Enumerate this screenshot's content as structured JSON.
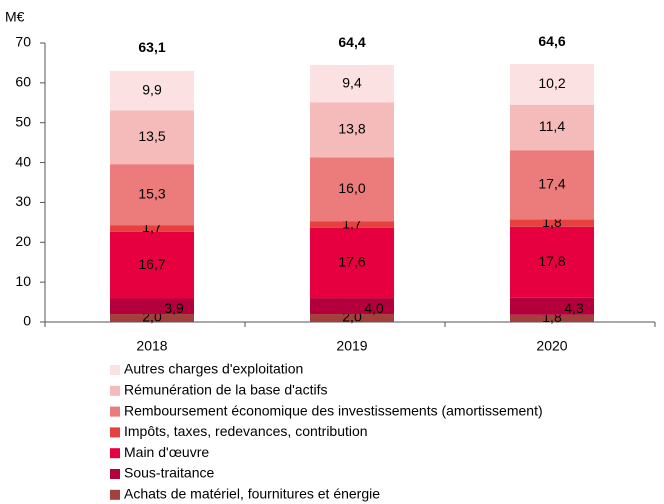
{
  "chart_data": {
    "type": "stacked_bar",
    "y_unit": "M€",
    "categories": [
      "2018",
      "2019",
      "2020"
    ],
    "series": [
      {
        "name": "Achats de matériel, fournitures et énergie",
        "color": "#a2413c",
        "values": [
          2.0,
          2.0,
          1.8
        ],
        "value_labels": [
          "2,0",
          "2,0",
          "1,8"
        ]
      },
      {
        "name": "Sous-traitance",
        "color": "#b3003c",
        "values": [
          3.9,
          4.0,
          4.3
        ],
        "value_labels": [
          "3,9",
          "4,0",
          "4,3"
        ]
      },
      {
        "name": "Main d'œuvre",
        "color": "#e6003f",
        "values": [
          16.7,
          17.6,
          17.8
        ],
        "value_labels": [
          "16,7",
          "17,6",
          "17,8"
        ]
      },
      {
        "name": "Impôts, taxes, redevances, contribution",
        "color": "#e6413e",
        "values": [
          1.7,
          1.7,
          1.8
        ],
        "value_labels": [
          "1,7",
          "1,7",
          "1,8"
        ]
      },
      {
        "name": "Remboursement économique des investissements (amortissement)",
        "color": "#ec7b7b",
        "values": [
          15.3,
          16.0,
          17.4
        ],
        "value_labels": [
          "15,3",
          "16,0",
          "17,4"
        ]
      },
      {
        "name": "Rémunération de la base d'actifs",
        "color": "#f5baba",
        "values": [
          13.5,
          13.8,
          11.4
        ],
        "value_labels": [
          "13,5",
          "13,8",
          "11,4"
        ]
      },
      {
        "name": "Autres charges d'exploitation",
        "color": "#fbe1e1",
        "values": [
          9.9,
          9.4,
          10.2
        ],
        "value_labels": [
          "9,9",
          "9,4",
          "10,2"
        ]
      }
    ],
    "totals": [
      63.1,
      64.4,
      64.6
    ],
    "total_labels": [
      "63,1",
      "64,4",
      "64,6"
    ],
    "ylim": [
      0,
      70
    ],
    "yticks": [
      0,
      10,
      20,
      30,
      40,
      50,
      60,
      70
    ]
  }
}
